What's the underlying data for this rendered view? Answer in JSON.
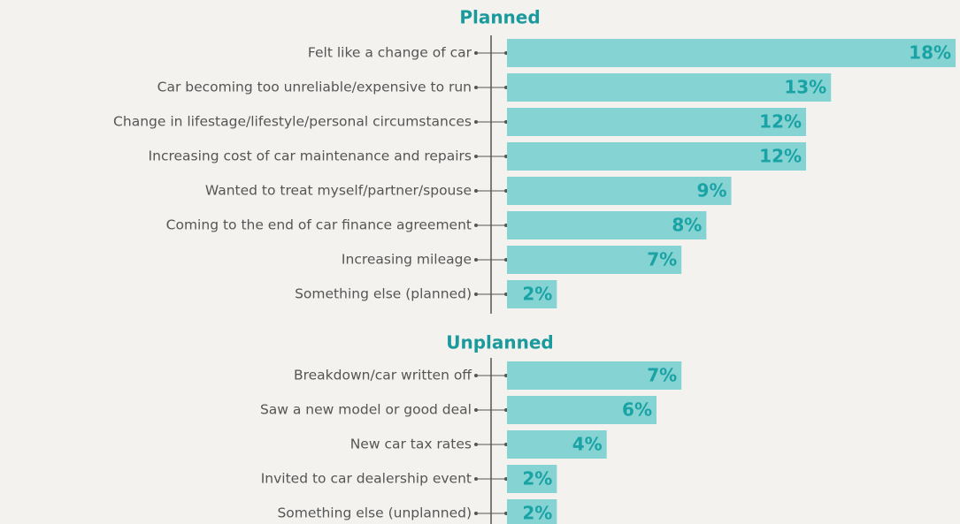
{
  "chart_data": [
    {
      "type": "bar",
      "title": "Planned",
      "color": "#86d3d3",
      "categories": [
        "Felt like a change of car",
        "Car becoming too unreliable/expensive to run",
        "Change in lifestage/lifestyle/personal circumstances",
        "Increasing cost of car maintenance and repairs",
        "Wanted to treat myself/partner/spouse",
        "Coming to the end of car finance agreement",
        "Increasing mileage",
        "Something else (planned)"
      ],
      "values": [
        18,
        13,
        12,
        12,
        9,
        8,
        7,
        2
      ],
      "value_labels": [
        "18%",
        "13%",
        "12%",
        "12%",
        "9%",
        "8%",
        "7%",
        "2%"
      ]
    },
    {
      "type": "bar",
      "title": "Unplanned",
      "color": "#86d3d3",
      "categories": [
        "Breakdown/car written off",
        "Saw a new model or good deal",
        "New car tax rates",
        "Invited to car dealership event",
        "Something else (unplanned)"
      ],
      "values": [
        7,
        6,
        4,
        2,
        2
      ],
      "value_labels": [
        "7%",
        "6%",
        "4%",
        "2%",
        "2%"
      ]
    }
  ]
}
